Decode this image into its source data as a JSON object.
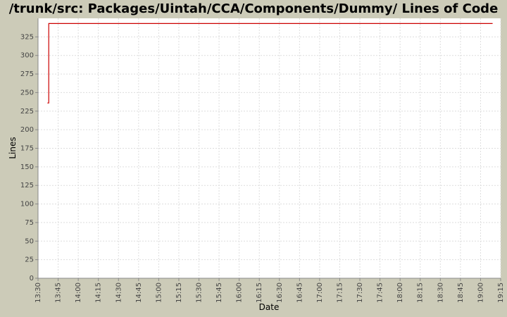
{
  "chart_data": {
    "type": "step",
    "title": "/trunk/src: Packages/Uintah/CCA/Components/Dummy/ Lines of Code",
    "x_label": "Date",
    "y_label": "Lines",
    "x": [
      "13:37",
      "13:38",
      "19:09"
    ],
    "series": [
      {
        "name": "Lines",
        "color": "#cc0000",
        "values": [
          236,
          343,
          343
        ]
      }
    ],
    "xlim": [
      "13:30",
      "19:15"
    ],
    "xticks": [
      "13:30",
      "13:45",
      "14:00",
      "14:15",
      "14:30",
      "14:45",
      "15:00",
      "15:15",
      "15:30",
      "15:45",
      "16:00",
      "16:15",
      "16:30",
      "16:45",
      "17:00",
      "17:15",
      "17:30",
      "17:45",
      "18:00",
      "18:15",
      "18:30",
      "18:45",
      "19:00",
      "19:15"
    ],
    "ylim": [
      0,
      350
    ],
    "yticks": [
      0,
      25,
      50,
      75,
      100,
      125,
      150,
      175,
      200,
      225,
      250,
      275,
      300,
      325
    ],
    "grid": true
  }
}
